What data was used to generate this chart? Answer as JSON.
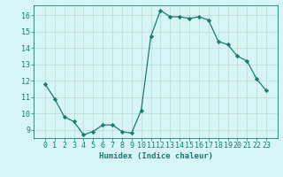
{
  "x": [
    0,
    1,
    2,
    3,
    4,
    5,
    6,
    7,
    8,
    9,
    10,
    11,
    12,
    13,
    14,
    15,
    16,
    17,
    18,
    19,
    20,
    21,
    22,
    23
  ],
  "y": [
    11.8,
    10.9,
    9.8,
    9.5,
    8.7,
    8.9,
    9.3,
    9.3,
    8.9,
    8.8,
    10.2,
    14.7,
    16.3,
    15.9,
    15.9,
    15.8,
    15.9,
    15.7,
    14.4,
    14.2,
    13.5,
    13.2,
    12.1,
    11.4
  ],
  "line_color": "#1a7a6e",
  "marker": "D",
  "markersize": 2.2,
  "linewidth": 0.9,
  "bg_color": "#d6f5f5",
  "grid_color": "#c0d8d8",
  "xlabel": "Humidex (Indice chaleur)",
  "xlabel_fontsize": 6.5,
  "tick_fontsize": 6,
  "ylim": [
    8.5,
    16.6
  ],
  "yticks": [
    9,
    10,
    11,
    12,
    13,
    14,
    15,
    16
  ],
  "xticks": [
    0,
    1,
    2,
    3,
    4,
    5,
    6,
    7,
    8,
    9,
    10,
    11,
    12,
    13,
    14,
    15,
    16,
    17,
    18,
    19,
    20,
    21,
    22,
    23
  ]
}
